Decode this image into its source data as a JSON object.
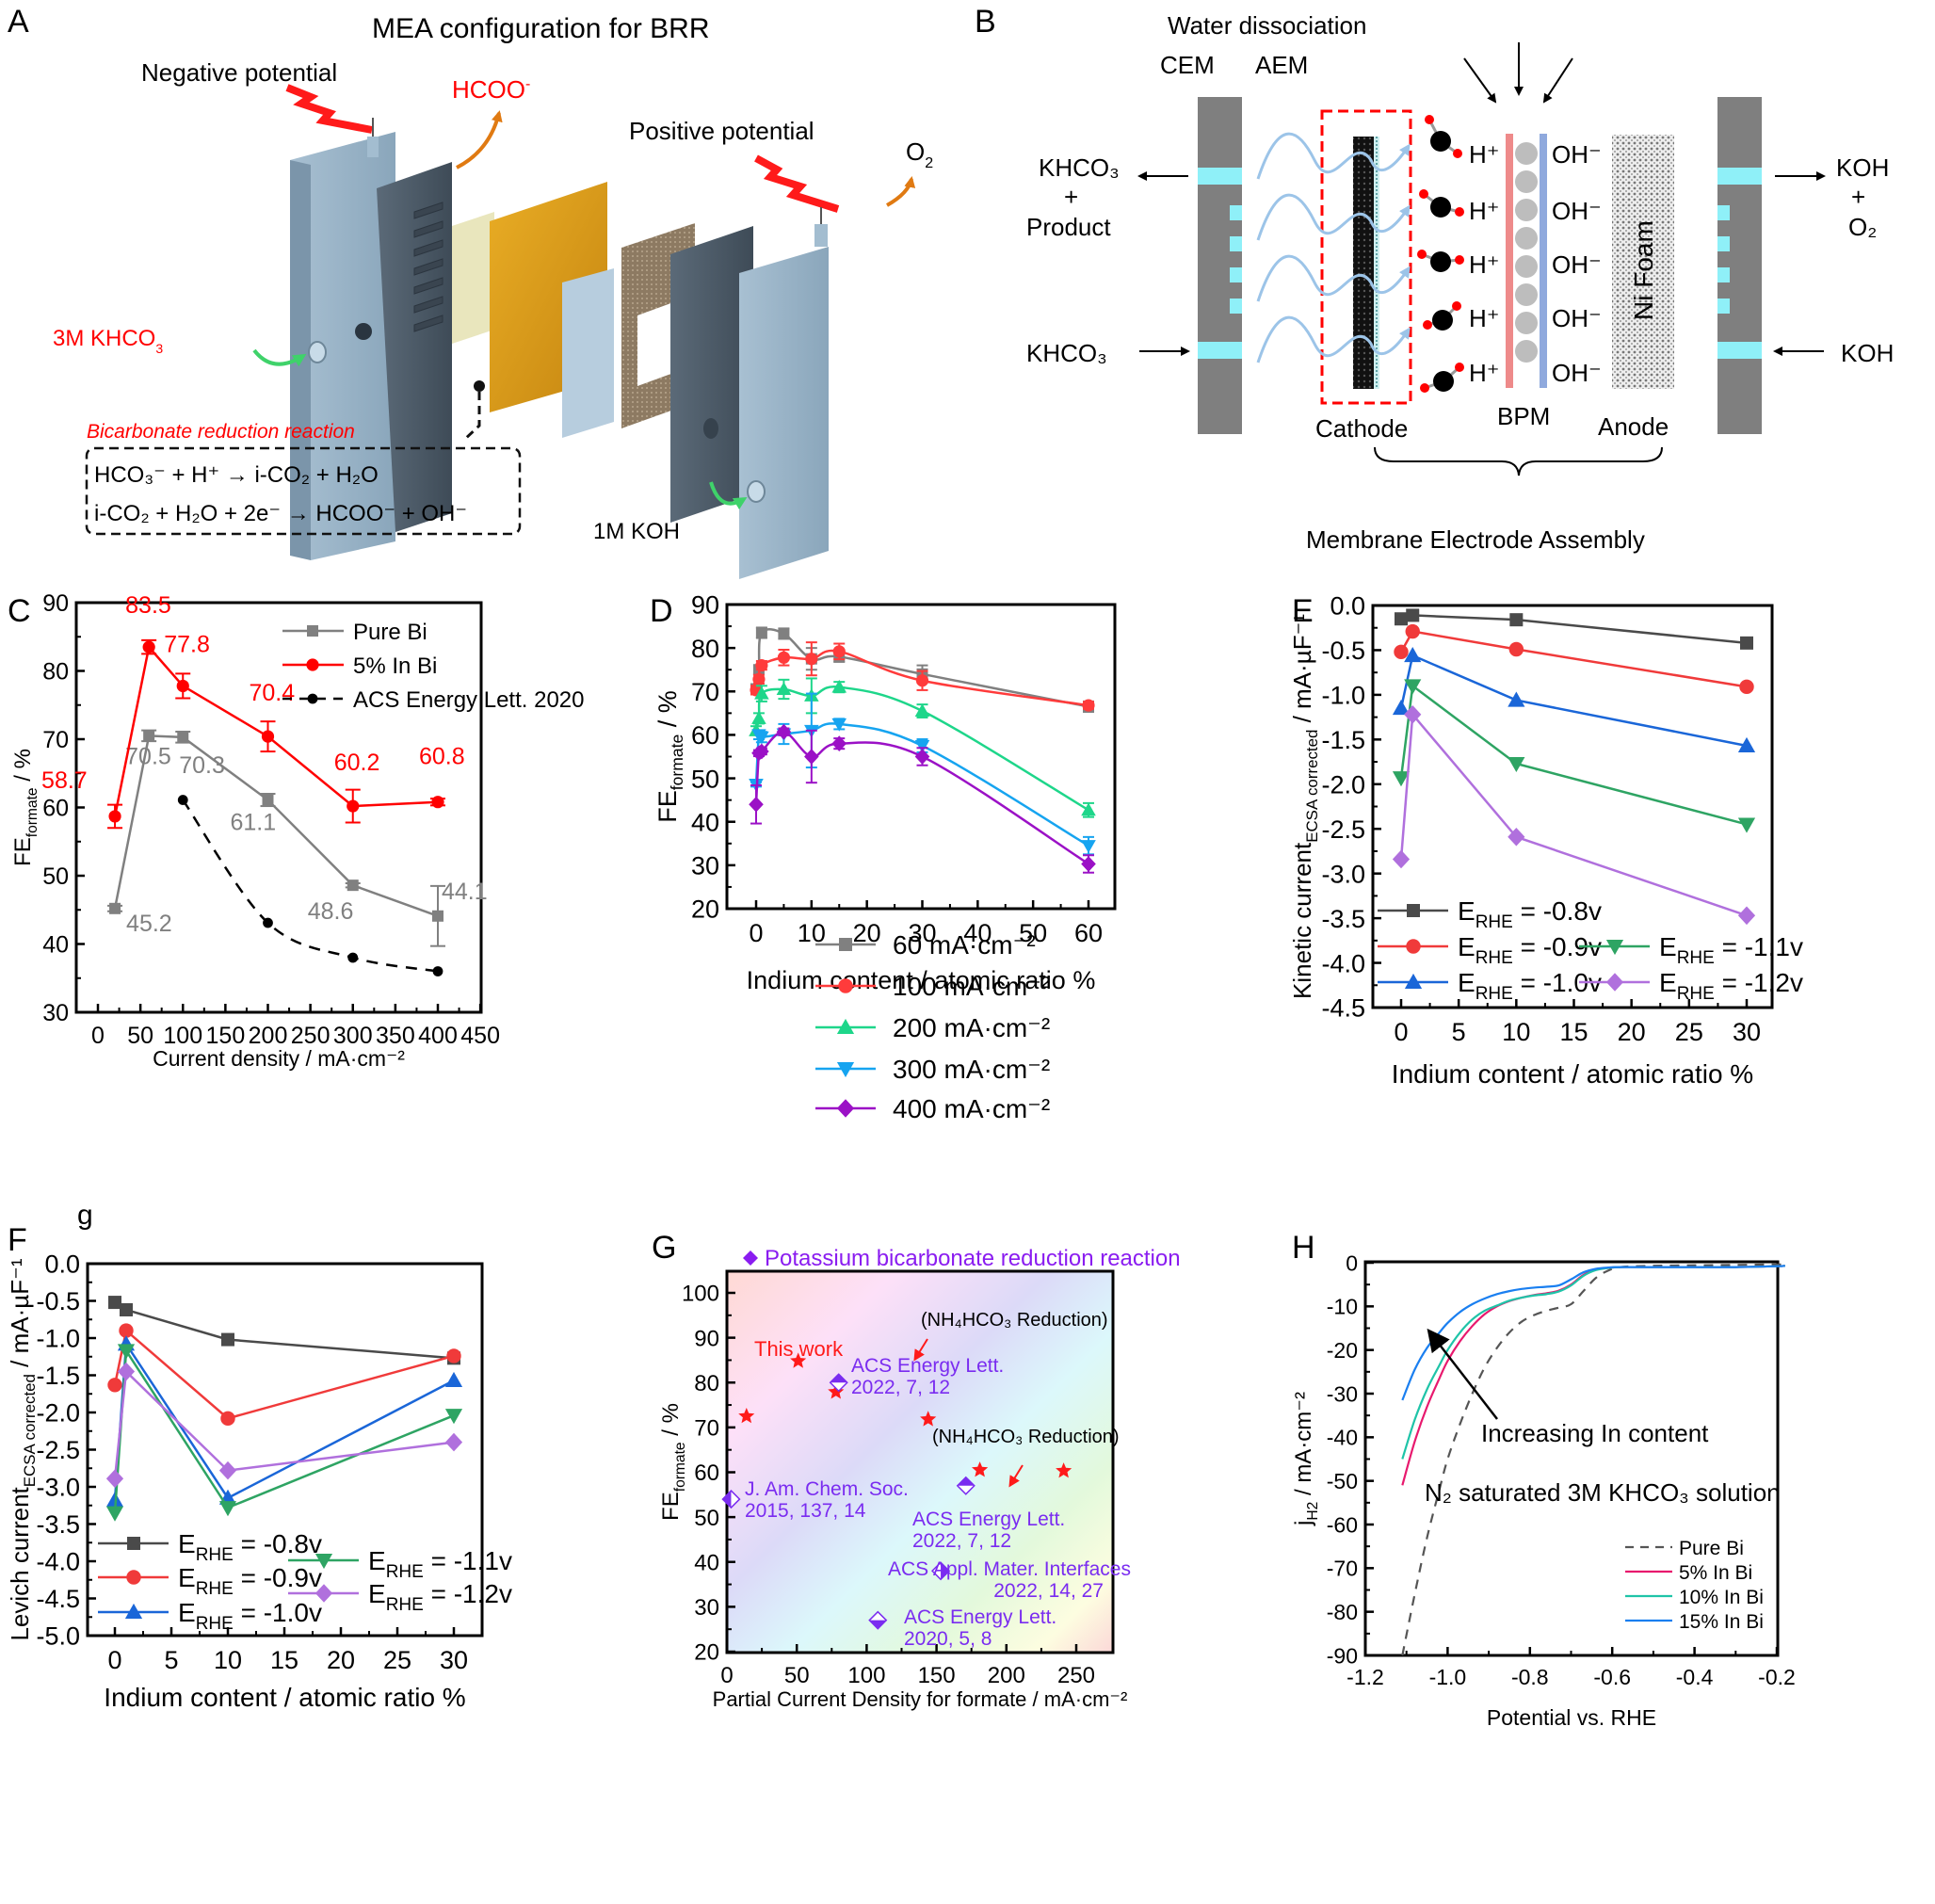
{
  "panel_A": {
    "letter": "A",
    "title": "MEA configuration for BRR",
    "negative_potential": "Negative potential",
    "positive_potential": "Positive potential",
    "product_out": "HCOO",
    "product_out_sup": "-",
    "o2": "O",
    "o2_sub": "2",
    "catholyte": "3M KHCO",
    "catholyte_sub": "3",
    "anolyte": "1M KOH",
    "reaction_title": "Bicarbonate reduction reaction",
    "eq1": "HCO₃⁻ + H⁺ → i-CO₂ + H₂O",
    "eq2": "i-CO₂ + H₂O + 2e⁻ → HCOO⁻ + OH⁻",
    "colors": {
      "red": "#ff0000",
      "plate_light": "#9fb8cc",
      "plate_dark": "#4f5f6d",
      "membrane_gold": "#d79a1a",
      "cathode_cream": "#e9e6bd",
      "arrow_orange": "#e07a12",
      "arrow_green": "#3fd26a"
    }
  },
  "panel_B": {
    "letter": "B",
    "water_dissociation": "Water dissociation",
    "cem": "CEM",
    "aem": "AEM",
    "left_out_1": "KHCO₃",
    "left_out_2": "+",
    "left_out_3": "Product",
    "left_in": "KHCO₃",
    "right_out_1": "KOH",
    "right_out_2": "+",
    "right_out_3": "O₂",
    "right_in": "KOH",
    "h_plus": "H⁺",
    "oh_minus": "OH⁻",
    "ni_foam": "Ni Foam",
    "cathode": "Cathode",
    "bpm": "BPM",
    "anode": "Anode",
    "mea": "Membrane Electrode Assembly",
    "colors": {
      "plate": "#7f7f7f",
      "channel": "#8ff0f8",
      "cem": "#ee8a8a",
      "aem": "#8fa9dd",
      "wave": "#9cc4e8",
      "dash_red": "#ff0000"
    }
  },
  "panel_C": {
    "letter": "C",
    "chart_data": {
      "type": "line",
      "xlabel": "Current density / mA·cm⁻²",
      "ylabel": "FE",
      "ylabel_sub": "formate",
      "ylabel_tail": " / %",
      "xlim": [
        -25,
        450
      ],
      "ylim": [
        30,
        90
      ],
      "xticks": [
        0,
        50,
        100,
        150,
        200,
        250,
        300,
        350,
        400,
        450
      ],
      "yticks": [
        30,
        40,
        50,
        60,
        70,
        80,
        90
      ],
      "legend_position": "top-right",
      "series": [
        {
          "name": "Pure Bi",
          "color": "#808080",
          "marker": "square",
          "dash": false,
          "x": [
            20,
            60,
            100,
            200,
            300,
            400
          ],
          "y": [
            45.2,
            70.5,
            70.3,
            61.1,
            48.6,
            44.1
          ],
          "err": [
            0.4,
            0.8,
            0.8,
            0.9,
            0.3,
            4.4
          ],
          "labels": [
            "45.2",
            "70.5",
            "70.3",
            "61.1",
            "48.6",
            "44.1"
          ]
        },
        {
          "name": "5% In Bi",
          "color": "#ff0000",
          "marker": "circle",
          "dash": false,
          "x": [
            20,
            60,
            100,
            200,
            300,
            400
          ],
          "y": [
            58.7,
            83.5,
            77.8,
            70.4,
            60.2,
            60.8
          ],
          "err": [
            1.7,
            1.0,
            1.8,
            2.2,
            2.4,
            0.5
          ],
          "labels": [
            "58.7",
            "83.5",
            "77.8",
            "70.4",
            "60.2",
            "60.8"
          ]
        },
        {
          "name": "ACS Energy Lett. 2020",
          "color": "#000000",
          "marker": "circle-small",
          "dash": true,
          "x": [
            100,
            200,
            300,
            400
          ],
          "y": [
            61.1,
            43.1,
            38.0,
            36.0
          ],
          "err": [
            0,
            0,
            0,
            0
          ],
          "labels": []
        }
      ]
    }
  },
  "panel_D": {
    "letter": "D",
    "chart_data": {
      "type": "line",
      "xlabel": "Indium content / atomic ratio %",
      "ylabel": "FE",
      "ylabel_sub": "formate",
      "ylabel_tail": " / %",
      "xlim": [
        -3,
        65
      ],
      "ylim": [
        20,
        90
      ],
      "xticks": [
        0,
        10,
        20,
        30,
        40,
        50,
        60
      ],
      "yticks": [
        20,
        30,
        40,
        50,
        60,
        70,
        80,
        90
      ],
      "legend_position": "bottom-left",
      "x": [
        0,
        0.5,
        1,
        5,
        10,
        15,
        30,
        60
      ],
      "series": [
        {
          "name": "60 mA·cm⁻²",
          "color": "#808080",
          "marker": "square",
          "y": [
            70.6,
            75.0,
            83.5,
            83.3,
            77.5,
            78.0,
            74.0,
            66.5
          ],
          "err": [
            0.8,
            1.0,
            1.2,
            1.2,
            2.5,
            1.2,
            2.0,
            1.2
          ]
        },
        {
          "name": "100 mA·cm⁻²",
          "color": "#ff3b3b",
          "marker": "circle",
          "y": [
            70.3,
            72.8,
            76.0,
            77.8,
            77.5,
            79.2,
            72.5,
            66.8
          ],
          "err": [
            1.0,
            1.0,
            1.0,
            1.8,
            3.8,
            1.8,
            2.2,
            0.8
          ]
        },
        {
          "name": "200 mA·cm⁻²",
          "color": "#1ed68a",
          "marker": "triangle-up",
          "y": [
            61.0,
            63.8,
            69.5,
            70.5,
            69.0,
            71.0,
            65.5,
            42.7
          ],
          "err": [
            1.0,
            1.2,
            1.8,
            2.2,
            4.0,
            1.2,
            1.5,
            1.6
          ]
        },
        {
          "name": "300 mA·cm⁻²",
          "color": "#16a4f0",
          "marker": "triangle-down",
          "y": [
            48.6,
            60.0,
            59.5,
            60.2,
            61.0,
            62.5,
            57.5,
            34.5
          ],
          "err": [
            0.5,
            1.0,
            1.2,
            2.3,
            8.5,
            1.2,
            1.5,
            2.0
          ]
        },
        {
          "name": "400 mA·cm⁻²",
          "color": "#9b11c6",
          "marker": "diamond",
          "y": [
            44.0,
            55.8,
            56.2,
            60.7,
            55.0,
            58.0,
            55.0,
            30.3
          ],
          "err": [
            4.4,
            0.7,
            0.7,
            0.8,
            6.0,
            1.2,
            2.0,
            2.0
          ]
        }
      ]
    }
  },
  "panel_E": {
    "letter": "E",
    "chart_data": {
      "type": "line",
      "xlabel": "Indium content / atomic ratio %",
      "ylabel": "Kinetic current",
      "ylabel_sub": "ECSA corrected",
      "ylabel_tail": " / mA·µF⁻¹",
      "xlim": [
        -2,
        32
      ],
      "ylim": [
        -4.5,
        0.0
      ],
      "xticks": [
        0,
        5,
        10,
        15,
        20,
        25,
        30
      ],
      "yticks": [
        0.0,
        -0.5,
        -1.0,
        -1.5,
        -2.0,
        -2.5,
        -3.0,
        -3.5,
        -4.0,
        -4.5
      ],
      "legend_position": "bottom",
      "x": [
        0,
        1,
        10,
        30
      ],
      "series": [
        {
          "name": "E",
          "sub": "RHE",
          "tail": " = -0.8v",
          "color": "#4a4a4a",
          "marker": "square",
          "y": [
            -0.15,
            -0.11,
            -0.16,
            -0.42
          ]
        },
        {
          "name": "E",
          "sub": "RHE",
          "tail": " = -0.9v",
          "color": "#f03a3a",
          "marker": "circle",
          "y": [
            -0.52,
            -0.29,
            -0.49,
            -0.91
          ]
        },
        {
          "name": "E",
          "sub": "RHE",
          "tail": " = -1.0v",
          "color": "#1a66d8",
          "marker": "triangle-up",
          "y": [
            -1.15,
            -0.56,
            -1.06,
            -1.57
          ]
        },
        {
          "name": "E",
          "sub": "RHE",
          "tail": " = -1.1v",
          "color": "#2ea463",
          "marker": "triangle-down",
          "y": [
            -1.93,
            -0.9,
            -1.77,
            -2.45
          ]
        },
        {
          "name": "E",
          "sub": "RHE",
          "tail": " = -1.2v",
          "color": "#b070dd",
          "marker": "diamond",
          "y": [
            -2.84,
            -1.22,
            -2.59,
            -3.47
          ]
        }
      ]
    }
  },
  "panel_F": {
    "letter": "F",
    "stray_label": "g",
    "chart_data": {
      "type": "line",
      "xlabel": "Indium content / atomic ratio %",
      "ylabel": "Levich current",
      "ylabel_sub": "ECSA corrected",
      "ylabel_tail": " / mA·µF⁻¹",
      "xlim": [
        -2.5,
        32
      ],
      "ylim": [
        -5.0,
        0.0
      ],
      "xticks": [
        0,
        5,
        10,
        15,
        20,
        25,
        30
      ],
      "yticks": [
        0.0,
        -0.5,
        -1.0,
        -1.5,
        -2.0,
        -2.5,
        -3.0,
        -3.5,
        -4.0,
        -4.5,
        -5.0
      ],
      "legend_position": "bottom",
      "x": [
        0,
        1,
        10,
        30
      ],
      "series": [
        {
          "name": "E",
          "sub": "RHE",
          "tail": " = -0.8v",
          "color": "#4a4a4a",
          "marker": "square",
          "y": [
            -0.52,
            -0.62,
            -1.02,
            -1.27
          ]
        },
        {
          "name": "E",
          "sub": "RHE",
          "tail": " = -0.9v",
          "color": "#f03a3a",
          "marker": "circle",
          "y": [
            -1.63,
            -0.9,
            -2.08,
            -1.24
          ]
        },
        {
          "name": "E",
          "sub": "RHE",
          "tail": " = -1.0v",
          "color": "#1a66d8",
          "marker": "triangle-up",
          "y": [
            -3.18,
            -1.08,
            -3.15,
            -1.57
          ]
        },
        {
          "name": "E",
          "sub": "RHE",
          "tail": " = -1.1v",
          "color": "#2ea463",
          "marker": "triangle-down",
          "y": [
            -3.35,
            -1.17,
            -3.28,
            -2.04
          ]
        },
        {
          "name": "E",
          "sub": "RHE",
          "tail": " = -1.2v",
          "color": "#b070dd",
          "marker": "diamond",
          "y": [
            -2.89,
            -1.45,
            -2.78,
            -2.4
          ]
        }
      ]
    }
  },
  "panel_G": {
    "letter": "G",
    "chart_data": {
      "type": "scatter",
      "title": "Potassium bicarbonate reduction reaction",
      "title_color": "#8a1cf0",
      "xlabel": "Partial Current Density for formate / mA·cm⁻²",
      "ylabel": "FE",
      "ylabel_sub": "formate",
      "ylabel_tail": " / %",
      "xlim": [
        0,
        275
      ],
      "ylim": [
        20,
        105
      ],
      "xticks": [
        0,
        50,
        100,
        150,
        200,
        250
      ],
      "yticks": [
        20,
        30,
        40,
        50,
        60,
        70,
        80,
        90,
        100
      ],
      "this_work": {
        "label": "This work",
        "color": "#ff1a1a",
        "points": [
          [
            14,
            72.5
          ],
          [
            51,
            84.8
          ],
          [
            78,
            77.9
          ],
          [
            144,
            71.8
          ],
          [
            181,
            60.5
          ],
          [
            241,
            60.3
          ]
        ]
      },
      "literature": [
        {
          "x": 80,
          "y": 80,
          "ref1": "ACS Energy Lett.",
          "ref2": "2022, 7, 12",
          "note": "(NH₄HCO₃ Reduction)",
          "half": "top"
        },
        {
          "x": 3,
          "y": 54,
          "ref1": "J. Am. Chem. Soc.",
          "ref2": "2015, 137, 14",
          "note": "",
          "half": "left"
        },
        {
          "x": 171,
          "y": 57,
          "ref1": "ACS Energy Lett.",
          "ref2": "2022, 7, 12",
          "note": "(NH₄HCO₃ Reduction)",
          "half": "top"
        },
        {
          "x": 153,
          "y": 38,
          "ref1": "ACS Appl. Mater. Interfaces",
          "ref2": "2022, 14, 27",
          "note": "",
          "half": "right"
        },
        {
          "x": 108,
          "y": 27,
          "ref1": "ACS Energy Lett.",
          "ref2": "2020, 5, 8",
          "note": "",
          "half": "bottom"
        }
      ],
      "marker_color": "#7a2cf0"
    }
  },
  "panel_H": {
    "letter": "H",
    "chart_data": {
      "type": "line",
      "xlabel": "Potential vs. RHE",
      "ylabel": "j",
      "ylabel_sub": "H2",
      "ylabel_tail": " / mA·cm⁻²",
      "xlim": [
        -1.2,
        -0.18
      ],
      "ylim": [
        -90,
        0
      ],
      "xticks": [
        -1.2,
        -1.0,
        -0.8,
        -0.6,
        -0.4,
        -0.2
      ],
      "xtick_labels": [
        "-1.2",
        "-1.0",
        "-0.8",
        "-0.6",
        "-0.4",
        "-0.2"
      ],
      "yticks": [
        0,
        -10,
        -20,
        -30,
        -40,
        -50,
        -60,
        -70,
        -80,
        -90
      ],
      "annotation_arrow": "Increasing In content",
      "annotation_note": "N₂ saturated 3M KHCO₃ solution",
      "legend_position": "bottom-right",
      "series": [
        {
          "name": "Pure Bi",
          "color": "#555555",
          "dash": true,
          "x": [
            -1.11,
            -1.08,
            -1.05,
            -1.02,
            -1.0,
            -0.97,
            -0.94,
            -0.91,
            -0.88,
            -0.85,
            -0.82,
            -0.79,
            -0.76,
            -0.73,
            -0.7,
            -0.67,
            -0.64,
            -0.61,
            -0.58,
            -0.5,
            -0.4,
            -0.3,
            -0.2,
            -0.18
          ],
          "y": [
            -90,
            -76,
            -63,
            -52,
            -45,
            -37,
            -30,
            -24,
            -19.5,
            -16,
            -13.5,
            -12,
            -11,
            -10.3,
            -9.5,
            -6.5,
            -3.5,
            -1.8,
            -1.0,
            -0.7,
            -0.6,
            -0.5,
            -0.4,
            -0.4
          ]
        },
        {
          "name": "5% In Bi",
          "color": "#e8196e",
          "dash": false,
          "x": [
            -1.11,
            -1.08,
            -1.05,
            -1.02,
            -1.0,
            -0.97,
            -0.94,
            -0.91,
            -0.88,
            -0.85,
            -0.82,
            -0.79,
            -0.76,
            -0.73,
            -0.7,
            -0.67,
            -0.64,
            -0.61,
            -0.58,
            -0.5,
            -0.4,
            -0.3,
            -0.2,
            -0.18
          ],
          "y": [
            -51,
            -41,
            -33,
            -26.5,
            -22.5,
            -18,
            -14.5,
            -11.8,
            -10,
            -8.8,
            -8,
            -7.4,
            -7,
            -6.4,
            -5,
            -2.8,
            -1.6,
            -1.2,
            -1.0,
            -1.0,
            -1.0,
            -1.0,
            -0.8,
            -0.7
          ]
        },
        {
          "name": "10% In Bi",
          "color": "#1fc4a8",
          "dash": false,
          "x": [
            -1.11,
            -1.08,
            -1.05,
            -1.02,
            -1.0,
            -0.97,
            -0.94,
            -0.91,
            -0.88,
            -0.85,
            -0.82,
            -0.79,
            -0.76,
            -0.73,
            -0.7,
            -0.67,
            -0.64,
            -0.61,
            -0.58,
            -0.5,
            -0.4,
            -0.3,
            -0.2,
            -0.18
          ],
          "y": [
            -45,
            -36,
            -29,
            -23.5,
            -20,
            -16,
            -13,
            -11,
            -9.8,
            -8.7,
            -8,
            -7.5,
            -7.2,
            -6.6,
            -5.2,
            -3,
            -1.7,
            -1.2,
            -1.0,
            -1.0,
            -1.0,
            -1.0,
            -0.8,
            -0.7
          ]
        },
        {
          "name": "15% In Bi",
          "color": "#1a7ff0",
          "dash": false,
          "x": [
            -1.11,
            -1.08,
            -1.05,
            -1.02,
            -1.0,
            -0.97,
            -0.94,
            -0.91,
            -0.88,
            -0.85,
            -0.82,
            -0.79,
            -0.76,
            -0.73,
            -0.7,
            -0.67,
            -0.64,
            -0.61,
            -0.58,
            -0.5,
            -0.4,
            -0.3,
            -0.2,
            -0.18
          ],
          "y": [
            -31.5,
            -24.5,
            -19.5,
            -16,
            -13.8,
            -11.3,
            -9.5,
            -8.2,
            -7.2,
            -6.5,
            -6,
            -5.7,
            -5.5,
            -5.2,
            -3.8,
            -2.2,
            -1.4,
            -1.1,
            -1.0,
            -1.0,
            -1.0,
            -1.0,
            -0.8,
            -0.7
          ]
        }
      ]
    }
  }
}
